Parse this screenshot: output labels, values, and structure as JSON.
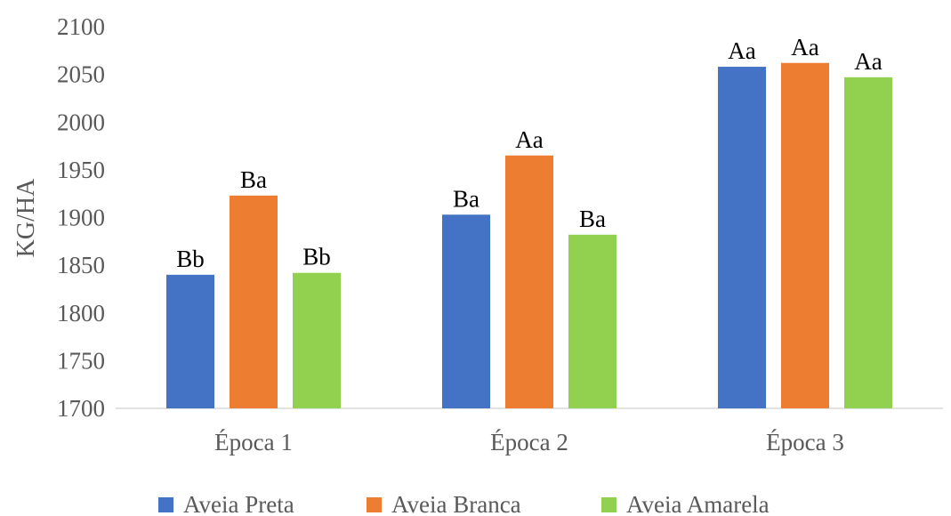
{
  "chart_data": {
    "type": "bar",
    "title": "",
    "xlabel": "",
    "ylabel": "KG/HA",
    "ylim": [
      1700,
      2100
    ],
    "yticks": [
      1700,
      1750,
      1800,
      1850,
      1900,
      1950,
      2000,
      2050,
      2100
    ],
    "grid": false,
    "legend_position": "bottom",
    "categories": [
      "Época 1",
      "Época 2",
      "Época 3"
    ],
    "series": [
      {
        "name": "Aveia Preta",
        "color": "#4472C4",
        "values": [
          1840,
          1903,
          2058
        ],
        "labels": [
          "Bb",
          "Ba",
          "Aa"
        ]
      },
      {
        "name": "Aveia Branca",
        "color": "#ED7D31",
        "values": [
          1923,
          1965,
          2062
        ],
        "labels": [
          "Ba",
          "Aa",
          "Aa"
        ]
      },
      {
        "name": "Aveia Amarela",
        "color": "#92D050",
        "values": [
          1842,
          1882,
          2047
        ],
        "labels": [
          "Bb",
          "Ba",
          "Aa"
        ]
      }
    ]
  }
}
